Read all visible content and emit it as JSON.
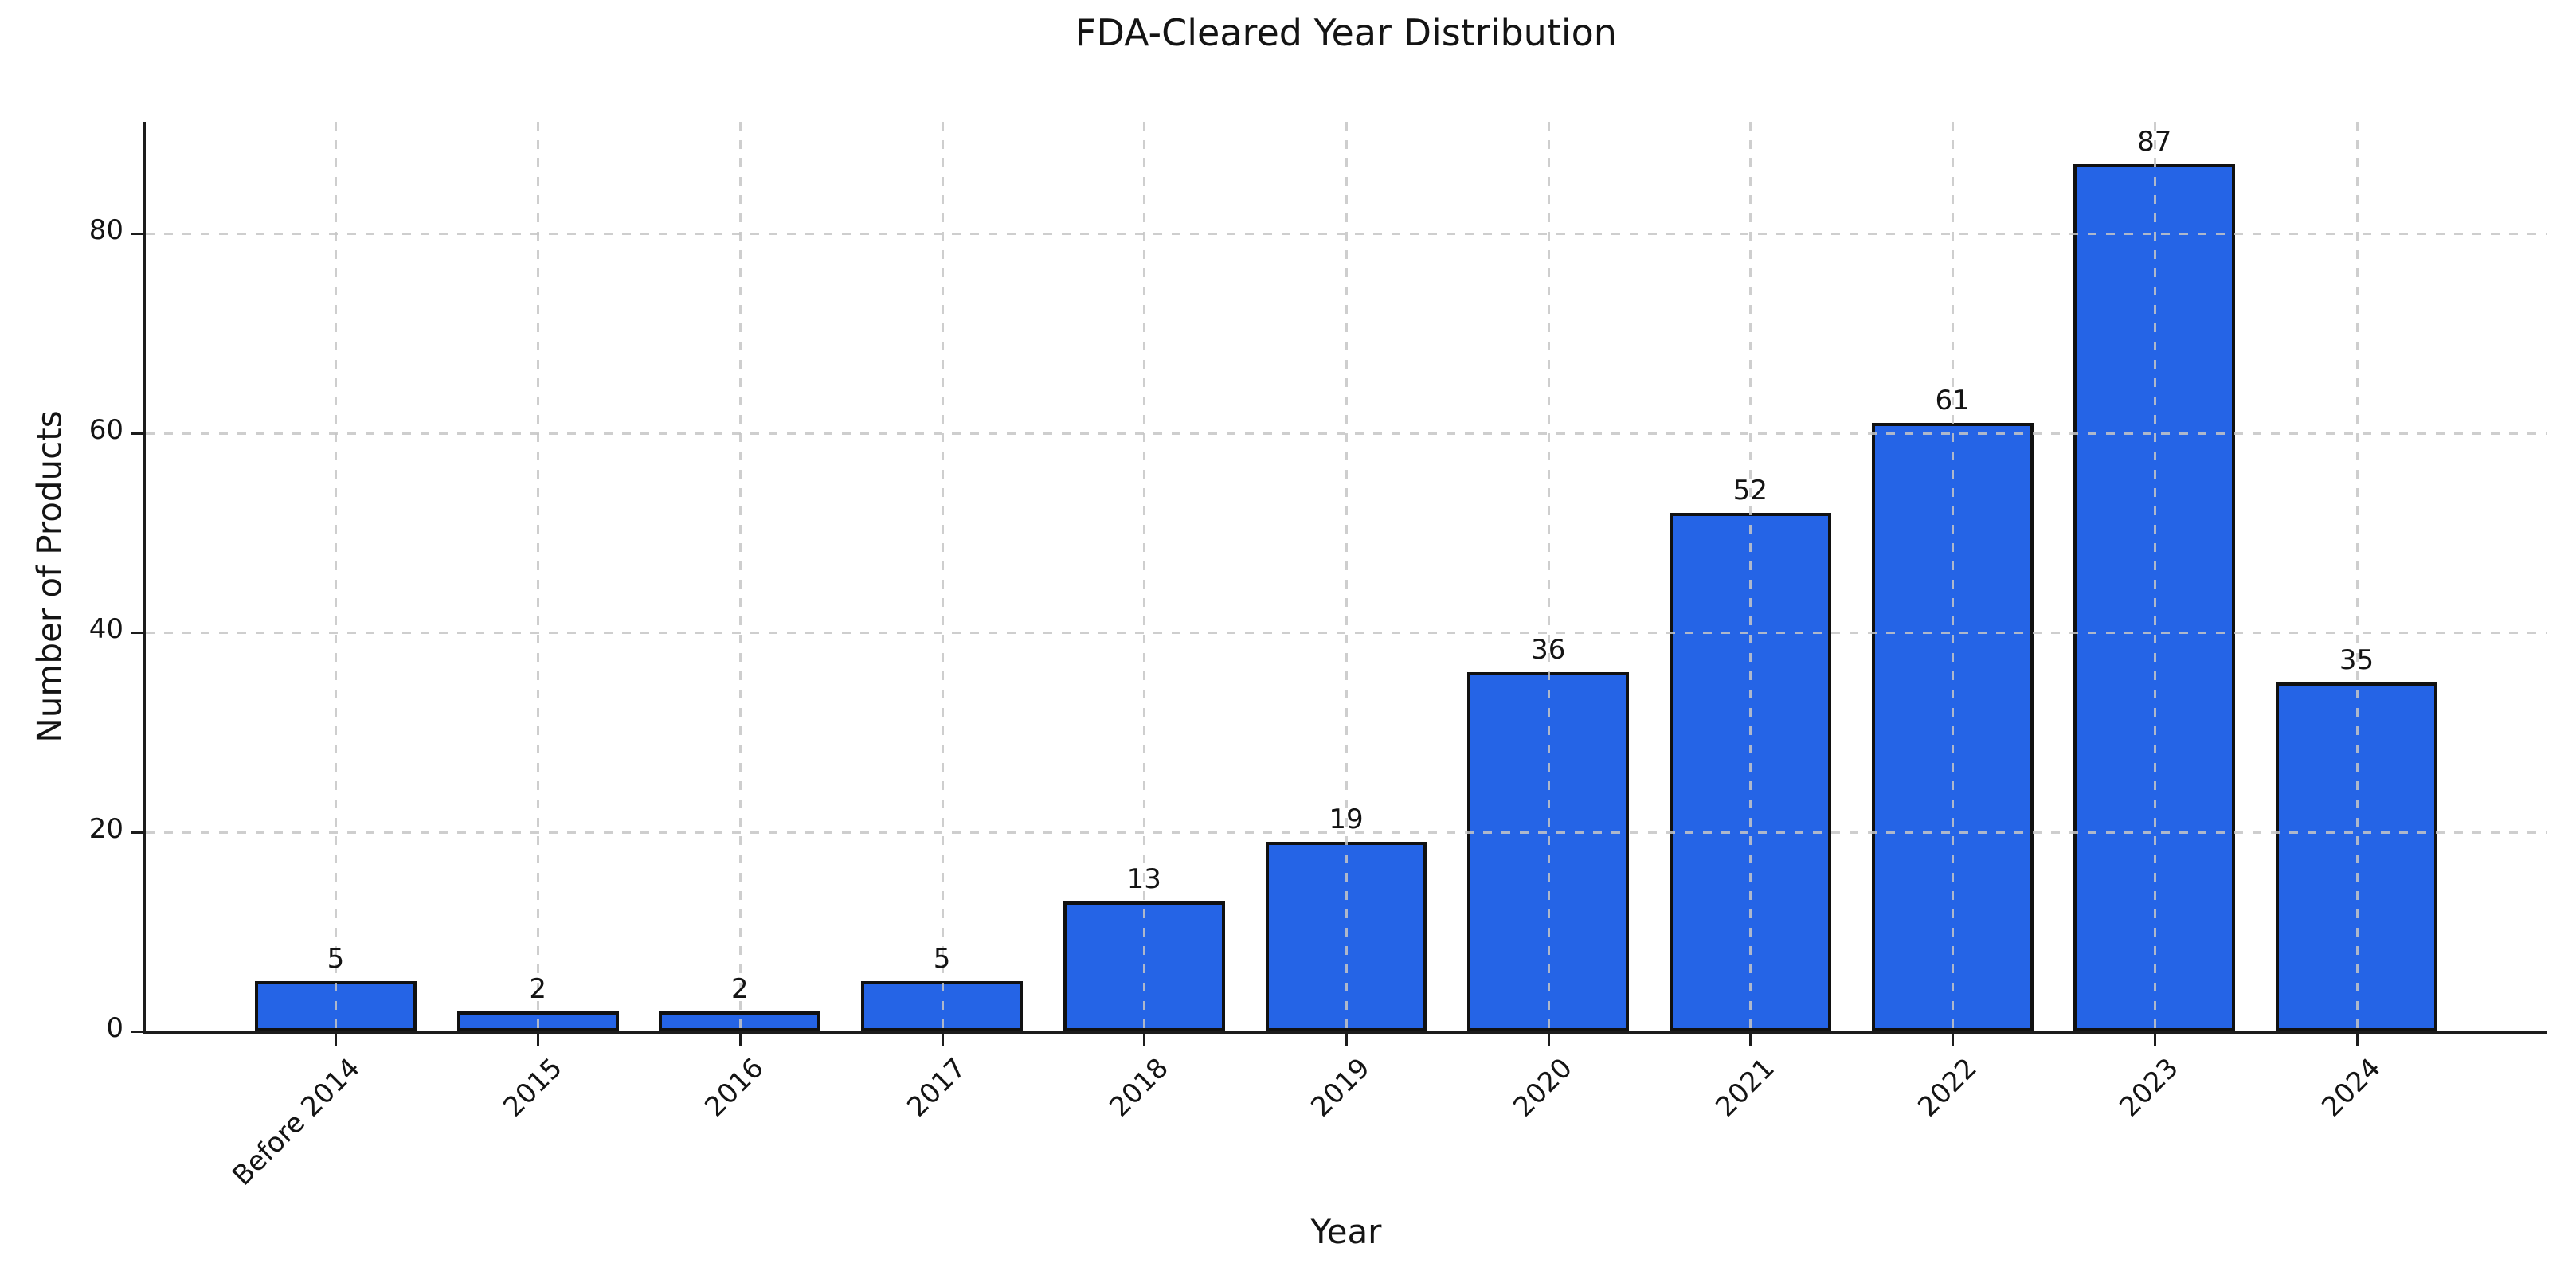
{
  "page": {
    "background_color": "#ffffff"
  },
  "chart_data": {
    "type": "bar",
    "title": "FDA-Cleared Year Distribution",
    "xlabel": "Year",
    "ylabel": "Number of Products",
    "categories": [
      "Before 2014",
      "2015",
      "2016",
      "2017",
      "2018",
      "2019",
      "2020",
      "2021",
      "2022",
      "2023",
      "2024"
    ],
    "values": [
      5,
      2,
      2,
      5,
      13,
      19,
      36,
      52,
      61,
      87,
      35
    ],
    "bar_value_labels": [
      "5",
      "2",
      "2",
      "5",
      "13",
      "19",
      "36",
      "52",
      "61",
      "87",
      "35"
    ],
    "yticks": [
      0,
      20,
      40,
      60,
      80
    ],
    "ylim": [
      0,
      91.2
    ],
    "grid": {
      "style": "dashed",
      "axes": "both",
      "drawn_above_bars": true
    },
    "legend": null,
    "colors": {
      "bar_fill": "#2564e6",
      "bar_edge": "#111111",
      "grid": "#c6c6c6",
      "axis": "#1c1c1c",
      "text": "#141414"
    }
  }
}
